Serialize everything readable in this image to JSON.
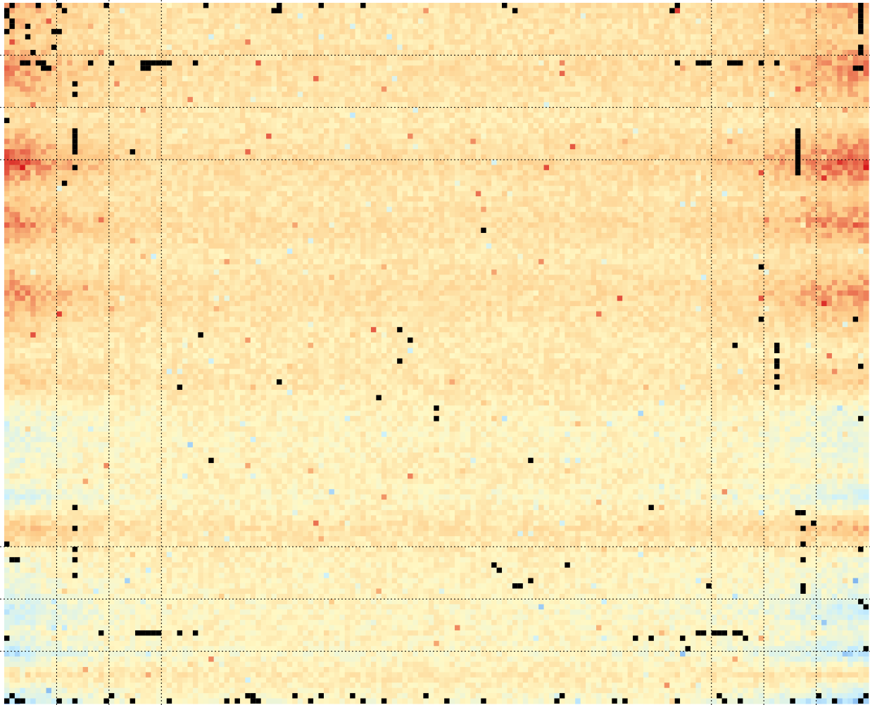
{
  "chart_data": {
    "type": "heatmap",
    "title": "",
    "xlabel": "",
    "ylabel": "",
    "grid": true,
    "legend": "none",
    "colormap": {
      "low": "#2a6fdb",
      "low_mid": "#c9f0ff",
      "mid": "#fff8c4",
      "high_mid": "#fdc986",
      "high": "#d7191c",
      "masked": "#000000"
    },
    "value_range": [
      -1,
      1
    ],
    "columns": 165,
    "rows": 134,
    "column_profile": {
      "positions": [
        0,
        4,
        10,
        20,
        30,
        80,
        130,
        145,
        150,
        155,
        164
      ],
      "weights": [
        1.0,
        0.85,
        0.55,
        0.35,
        0.22,
        0.18,
        0.25,
        0.45,
        0.6,
        0.8,
        1.0
      ]
    },
    "row_profile": {
      "positions": [
        0,
        6,
        12,
        17,
        22,
        30,
        36,
        42,
        48,
        55,
        60,
        66,
        72,
        78,
        84,
        90,
        94,
        100,
        106,
        112,
        116,
        120,
        124,
        128,
        133
      ],
      "values": [
        0.45,
        0.25,
        0.55,
        0.35,
        0.1,
        0.75,
        0.2,
        0.6,
        0.1,
        0.55,
        0.3,
        0.0,
        0.25,
        -0.25,
        -0.35,
        -0.1,
        -0.45,
        0.35,
        -0.2,
        -0.3,
        -0.55,
        -0.25,
        -0.6,
        0.1,
        -0.7
      ]
    },
    "gridlines_x": [
      10,
      20,
      30,
      135,
      145,
      155
    ],
    "gridlines_y": [
      10,
      20,
      30,
      104,
      114,
      124
    ],
    "masked_cells": [
      [
        1,
        0
      ],
      [
        6,
        0
      ],
      [
        10,
        0
      ],
      [
        19,
        0
      ],
      [
        38,
        0
      ],
      [
        52,
        0
      ],
      [
        60,
        0
      ],
      [
        68,
        0
      ],
      [
        95,
        0
      ],
      [
        128,
        0
      ],
      [
        163,
        0
      ],
      [
        0,
        1
      ],
      [
        11,
        1
      ],
      [
        51,
        1
      ],
      [
        52,
        1
      ],
      [
        97,
        1
      ],
      [
        127,
        1
      ],
      [
        163,
        1
      ],
      [
        0,
        2
      ],
      [
        163,
        2
      ],
      [
        1,
        3
      ],
      [
        163,
        3
      ],
      [
        1,
        4
      ],
      [
        4,
        4
      ],
      [
        163,
        4
      ],
      [
        0,
        5
      ],
      [
        9,
        5
      ],
      [
        10,
        5
      ],
      [
        163,
        5
      ],
      [
        4,
        6
      ],
      [
        9,
        8
      ],
      [
        163,
        8
      ],
      [
        5,
        9
      ],
      [
        163,
        9
      ],
      [
        3,
        11
      ],
      [
        4,
        11
      ],
      [
        6,
        11
      ],
      [
        7,
        11
      ],
      [
        16,
        11
      ],
      [
        20,
        11
      ],
      [
        26,
        11
      ],
      [
        27,
        11
      ],
      [
        28,
        11
      ],
      [
        29,
        11
      ],
      [
        30,
        11
      ],
      [
        31,
        11
      ],
      [
        36,
        11
      ],
      [
        128,
        11
      ],
      [
        132,
        11
      ],
      [
        133,
        11
      ],
      [
        134,
        11
      ],
      [
        138,
        11
      ],
      [
        139,
        11
      ],
      [
        140,
        11
      ],
      [
        144,
        11
      ],
      [
        147,
        11
      ],
      [
        7,
        12
      ],
      [
        8,
        12
      ],
      [
        26,
        12
      ],
      [
        27,
        12
      ],
      [
        162,
        12
      ],
      [
        163,
        12
      ],
      [
        13,
        15
      ],
      [
        13,
        17
      ],
      [
        0,
        22
      ],
      [
        13,
        24
      ],
      [
        151,
        24
      ],
      [
        13,
        25
      ],
      [
        151,
        25
      ],
      [
        13,
        26
      ],
      [
        151,
        26
      ],
      [
        13,
        27
      ],
      [
        151,
        27
      ],
      [
        13,
        28
      ],
      [
        24,
        28
      ],
      [
        151,
        28
      ],
      [
        151,
        29
      ],
      [
        151,
        30
      ],
      [
        13,
        31
      ],
      [
        151,
        31
      ],
      [
        151,
        32
      ],
      [
        11,
        34
      ],
      [
        91,
        43
      ],
      [
        144,
        50
      ],
      [
        144,
        60
      ],
      [
        162,
        60
      ],
      [
        75,
        62
      ],
      [
        37,
        63
      ],
      [
        77,
        64
      ],
      [
        139,
        65
      ],
      [
        147,
        65
      ],
      [
        147,
        66
      ],
      [
        75,
        68
      ],
      [
        147,
        68
      ],
      [
        147,
        69
      ],
      [
        163,
        69
      ],
      [
        147,
        71
      ],
      [
        52,
        72
      ],
      [
        33,
        73
      ],
      [
        147,
        73
      ],
      [
        71,
        75
      ],
      [
        82,
        77
      ],
      [
        82,
        79
      ],
      [
        163,
        79
      ],
      [
        39,
        87
      ],
      [
        100,
        87
      ],
      [
        123,
        96
      ],
      [
        13,
        96
      ],
      [
        151,
        97
      ],
      [
        152,
        97
      ],
      [
        154,
        99
      ],
      [
        13,
        100
      ],
      [
        152,
        100
      ],
      [
        0,
        103
      ],
      [
        152,
        103
      ],
      [
        13,
        104
      ],
      [
        163,
        104
      ],
      [
        1,
        106
      ],
      [
        2,
        106
      ],
      [
        13,
        106
      ],
      [
        152,
        106
      ],
      [
        93,
        107
      ],
      [
        107,
        107
      ],
      [
        94,
        108
      ],
      [
        13,
        109
      ],
      [
        100,
        110
      ],
      [
        97,
        111
      ],
      [
        98,
        111
      ],
      [
        152,
        111
      ],
      [
        134,
        111
      ],
      [
        152,
        112
      ],
      [
        163,
        114
      ],
      [
        164,
        115
      ],
      [
        18,
        120
      ],
      [
        25,
        120
      ],
      [
        26,
        120
      ],
      [
        27,
        120
      ],
      [
        28,
        120
      ],
      [
        29,
        120
      ],
      [
        33,
        120
      ],
      [
        36,
        120
      ],
      [
        132,
        120
      ],
      [
        133,
        120
      ],
      [
        135,
        120
      ],
      [
        136,
        120
      ],
      [
        137,
        120
      ],
      [
        139,
        120
      ],
      [
        140,
        120
      ],
      [
        0,
        121
      ],
      [
        120,
        121
      ],
      [
        123,
        121
      ],
      [
        129,
        121
      ],
      [
        141,
        121
      ],
      [
        130,
        123
      ],
      [
        164,
        123
      ],
      [
        1,
        132
      ],
      [
        20,
        132
      ],
      [
        46,
        132
      ],
      [
        47,
        132
      ],
      [
        55,
        132
      ],
      [
        60,
        132
      ],
      [
        66,
        132
      ],
      [
        80,
        132
      ],
      [
        106,
        132
      ],
      [
        136,
        132
      ],
      [
        155,
        132
      ],
      [
        164,
        132
      ],
      [
        0,
        133
      ],
      [
        2,
        133
      ],
      [
        3,
        133
      ],
      [
        10,
        133
      ],
      [
        13,
        133
      ],
      [
        19,
        133
      ],
      [
        24,
        133
      ],
      [
        31,
        133
      ],
      [
        42,
        133
      ],
      [
        44,
        133
      ],
      [
        47,
        133
      ],
      [
        48,
        133
      ],
      [
        58,
        133
      ],
      [
        68,
        133
      ],
      [
        72,
        133
      ],
      [
        84,
        133
      ],
      [
        91,
        133
      ],
      [
        105,
        133
      ],
      [
        116,
        133
      ],
      [
        118,
        133
      ],
      [
        128,
        133
      ],
      [
        137,
        133
      ],
      [
        140,
        133
      ],
      [
        150,
        133
      ],
      [
        158,
        133
      ],
      [
        163,
        133
      ]
    ]
  }
}
